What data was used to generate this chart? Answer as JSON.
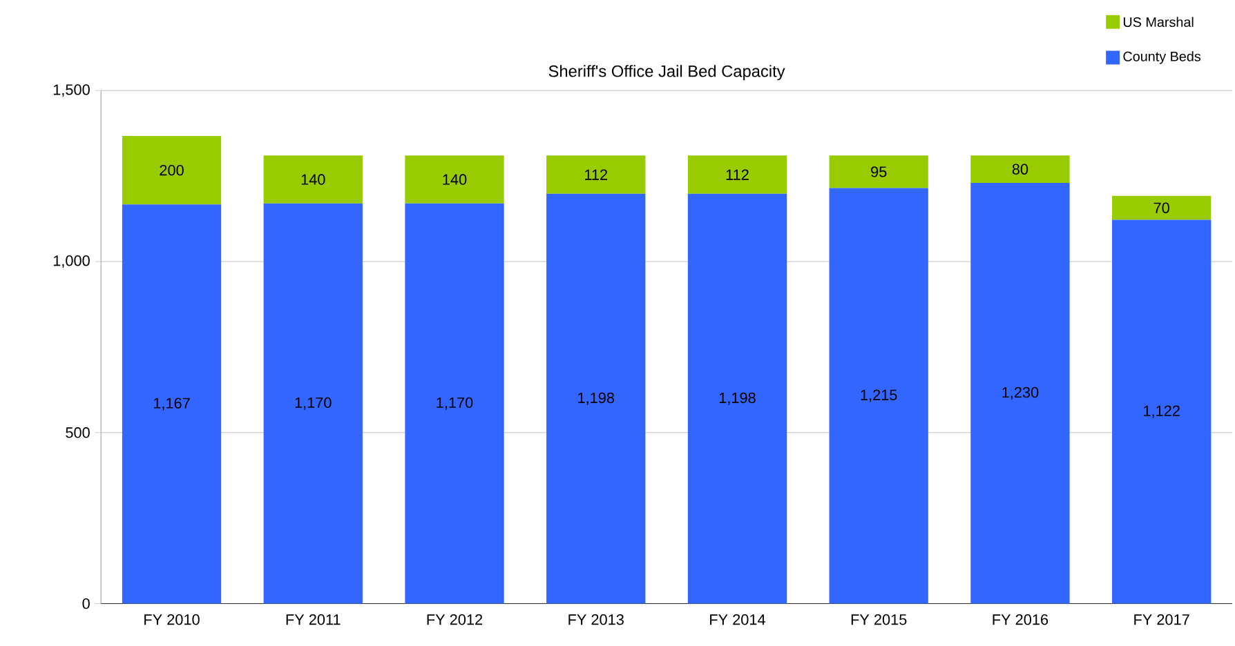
{
  "chart_data": {
    "type": "bar",
    "title": "Sheriff's Office Jail Bed Capacity",
    "stacked": true,
    "categories": [
      "FY 2010",
      "FY 2011",
      "FY 2012",
      "FY 2013",
      "FY 2014",
      "FY 2015",
      "FY 2016",
      "FY 2017"
    ],
    "series": [
      {
        "name": "County Beds",
        "color": "#3366ff",
        "values": [
          1167,
          1170,
          1170,
          1198,
          1198,
          1215,
          1230,
          1122
        ],
        "value_labels": [
          "1,167",
          "1,170",
          "1,170",
          "1,198",
          "1,198",
          "1,215",
          "1,230",
          "1,122"
        ]
      },
      {
        "name": "US Marshal",
        "color": "#99cc00",
        "values": [
          200,
          140,
          140,
          112,
          112,
          95,
          80,
          70
        ],
        "value_labels": [
          "200",
          "140",
          "140",
          "112",
          "112",
          "95",
          "80",
          "70"
        ]
      }
    ],
    "ylim": [
      0,
      1500
    ],
    "yticks": [
      0,
      500,
      {
        "value": 1000,
        "label": "1,000"
      },
      {
        "value": 1500,
        "label": "1,500"
      }
    ],
    "grid": "y",
    "legend": "top right"
  }
}
